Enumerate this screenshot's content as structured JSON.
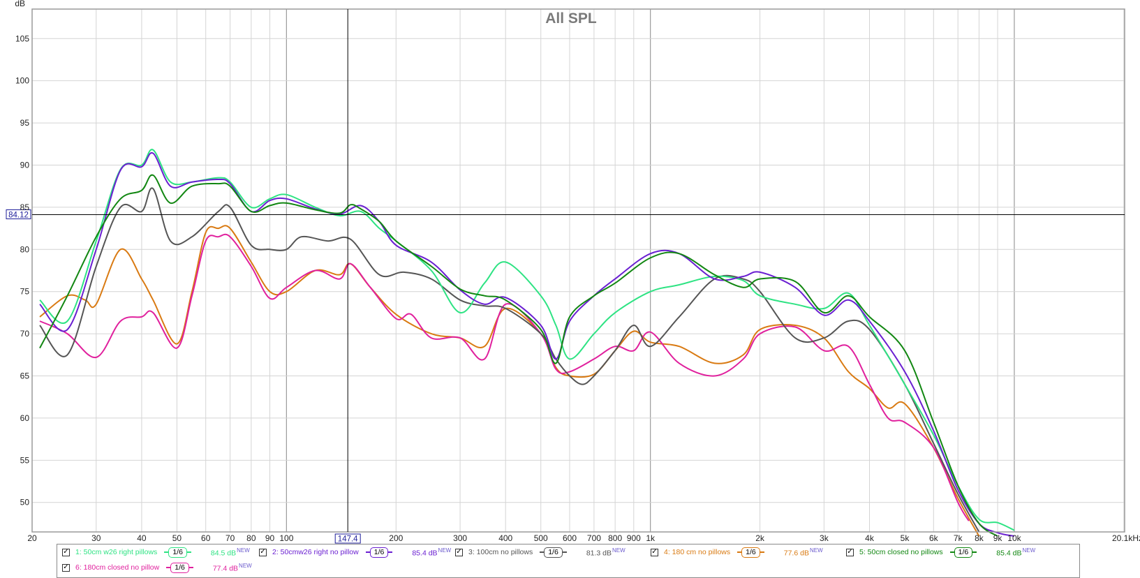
{
  "chart_data": {
    "type": "line",
    "title": "All SPL",
    "ylabel": "dB",
    "xscale": "log",
    "xlim": [
      20,
      20100
    ],
    "ylim": [
      46.5,
      108.5
    ],
    "grid": true,
    "y_ticks": [
      "50",
      "55",
      "60",
      "65",
      "70",
      "75",
      "80",
      "85",
      "90",
      "95",
      "100",
      "105"
    ],
    "x_ticks": [
      {
        "v": 20,
        "label": "20"
      },
      {
        "v": 30,
        "label": "30"
      },
      {
        "v": 40,
        "label": "40"
      },
      {
        "v": 50,
        "label": "50"
      },
      {
        "v": 60,
        "label": "60"
      },
      {
        "v": 70,
        "label": "70"
      },
      {
        "v": 80,
        "label": "80"
      },
      {
        "v": 90,
        "label": "90"
      },
      {
        "v": 100,
        "label": "100"
      },
      {
        "v": 200,
        "label": "200"
      },
      {
        "v": 300,
        "label": "300"
      },
      {
        "v": 400,
        "label": "400"
      },
      {
        "v": 500,
        "label": "500"
      },
      {
        "v": 600,
        "label": "600"
      },
      {
        "v": 700,
        "label": "700"
      },
      {
        "v": 800,
        "label": "800"
      },
      {
        "v": 900,
        "label": "900"
      },
      {
        "v": 1000,
        "label": "1k"
      },
      {
        "v": 2000,
        "label": "2k"
      },
      {
        "v": 3000,
        "label": "3k"
      },
      {
        "v": 4000,
        "label": "4k"
      },
      {
        "v": 5000,
        "label": "5k"
      },
      {
        "v": 6000,
        "label": "6k"
      },
      {
        "v": 7000,
        "label": "7k"
      },
      {
        "v": 8000,
        "label": "8k"
      },
      {
        "v": 9000,
        "label": "9k"
      },
      {
        "v": 10000,
        "label": "10k"
      },
      {
        "v": 20100,
        "label": "20.1kHz"
      }
    ],
    "cursor": {
      "x": 147.4,
      "y": 84.12,
      "x_label": "147.4",
      "y_label": "84.12"
    },
    "series": [
      {
        "name": "50cm w26 right pillows",
        "color": "#2ee383",
        "x": [
          21,
          25,
          30,
          35,
          40,
          43,
          48,
          55,
          65,
          70,
          80,
          90,
          100,
          120,
          140,
          160,
          180,
          200,
          250,
          300,
          350,
          400,
          500,
          550,
          600,
          700,
          800,
          1000,
          1200,
          1500,
          1800,
          2000,
          2500,
          3000,
          3500,
          4000,
          5000,
          6000,
          7000,
          8000,
          9000,
          10000
        ],
        "y": [
          74,
          71.5,
          81,
          89.5,
          90,
          91.8,
          88,
          88,
          88.5,
          88,
          85,
          86,
          86.5,
          85,
          84,
          84.5,
          82.5,
          81,
          77.5,
          72.5,
          76,
          78.5,
          74.5,
          71,
          67,
          70,
          72.5,
          75,
          75.8,
          76.8,
          76.3,
          74.5,
          73.5,
          73,
          74.8,
          71,
          64,
          58,
          52,
          48,
          47.6,
          46.7
        ]
      },
      {
        "name": "50cmw26 right no pillow",
        "color": "#6a1fd1",
        "x": [
          21,
          25,
          30,
          35,
          40,
          43,
          48,
          55,
          65,
          70,
          80,
          90,
          100,
          120,
          140,
          160,
          180,
          200,
          250,
          300,
          350,
          400,
          500,
          550,
          600,
          700,
          800,
          1000,
          1200,
          1500,
          1800,
          2000,
          2500,
          3000,
          3500,
          4000,
          5000,
          6000,
          7000,
          8000,
          9000,
          10000
        ],
        "y": [
          73.5,
          70.5,
          80,
          89.4,
          89.8,
          91.4,
          87.5,
          88,
          88.3,
          87.8,
          84.5,
          85.8,
          86,
          84.8,
          84.2,
          85.2,
          83.3,
          80.5,
          78.5,
          75.2,
          73.5,
          74.3,
          71,
          67,
          71.5,
          74.5,
          76.5,
          79.5,
          79.5,
          76.5,
          76.8,
          77.3,
          75.5,
          72.2,
          74,
          71.5,
          65.5,
          58.5,
          51.5,
          47.5,
          46.4,
          46
        ]
      },
      {
        "name": "100cm no pillows",
        "color": "#555555",
        "x": [
          21,
          25,
          30,
          35,
          40,
          43,
          48,
          55,
          65,
          70,
          80,
          90,
          100,
          110,
          130,
          150,
          180,
          210,
          250,
          300,
          350,
          400,
          500,
          550,
          600,
          650,
          700,
          800,
          900,
          1000,
          1200,
          1500,
          1800,
          2000,
          2500,
          3000,
          3500,
          4000,
          5000,
          6000,
          7000,
          8000
        ],
        "y": [
          71,
          67.5,
          78,
          85,
          84.5,
          87.2,
          81,
          81.5,
          84.5,
          85,
          80.5,
          80,
          80,
          81.5,
          81,
          81.2,
          77,
          77.3,
          76.5,
          74,
          73.3,
          73,
          70,
          67,
          65,
          64,
          65,
          68,
          71,
          68.5,
          72,
          76.5,
          76.5,
          75,
          69.5,
          69.5,
          71.5,
          70.5,
          64,
          57,
          51,
          46.5
        ]
      },
      {
        "name": "180 cm no pillows",
        "color": "#d97a12",
        "x": [
          21,
          25,
          28,
          30,
          35,
          40,
          43,
          50,
          55,
          60,
          65,
          70,
          80,
          90,
          100,
          120,
          140,
          150,
          170,
          200,
          250,
          300,
          350,
          400,
          500,
          550,
          600,
          700,
          800,
          900,
          1000,
          1200,
          1500,
          1800,
          2000,
          2500,
          3000,
          3500,
          4000,
          4500,
          5000,
          6000,
          7000,
          8000
        ],
        "y": [
          72,
          74.5,
          74,
          73.5,
          80,
          76.5,
          74,
          68.8,
          75,
          82,
          82.5,
          82.5,
          78.5,
          75,
          75,
          77.5,
          77,
          78.3,
          75.5,
          72.3,
          70,
          69.5,
          68.5,
          73,
          70,
          66,
          65,
          65.2,
          68,
          70.3,
          69,
          68.5,
          66.5,
          67.5,
          70.5,
          71,
          69.5,
          65.5,
          63.5,
          61.2,
          61.7,
          56.5,
          50.5,
          46
        ]
      },
      {
        "name": "50cm closed no pillows",
        "color": "#128712",
        "x": [
          21,
          25,
          30,
          35,
          40,
          43,
          48,
          55,
          65,
          70,
          80,
          90,
          100,
          120,
          140,
          150,
          160,
          180,
          200,
          250,
          300,
          350,
          400,
          500,
          550,
          600,
          700,
          800,
          1000,
          1200,
          1500,
          1800,
          2000,
          2500,
          3000,
          3500,
          4000,
          5000,
          6000,
          7000,
          8000,
          9000
        ],
        "y": [
          68.3,
          74.5,
          81.5,
          86,
          87,
          88.8,
          85.5,
          87.5,
          87.8,
          87.5,
          84.5,
          85.2,
          85.5,
          84.7,
          84.3,
          85.3,
          84.8,
          83.3,
          81,
          78,
          75.3,
          74.5,
          74,
          70.5,
          66.5,
          72,
          74.5,
          76,
          79,
          79.5,
          77,
          75.5,
          76.5,
          76.2,
          72.5,
          74.5,
          72,
          68,
          59.5,
          52,
          47.5,
          46
        ]
      },
      {
        "name": "180cm closed no pillow",
        "color": "#e0209d",
        "x": [
          21,
          25,
          30,
          35,
          40,
          43,
          50,
          55,
          60,
          65,
          70,
          80,
          90,
          100,
          120,
          140,
          150,
          170,
          200,
          220,
          250,
          300,
          350,
          400,
          500,
          550,
          600,
          700,
          800,
          900,
          1000,
          1200,
          1500,
          1800,
          2000,
          2500,
          3000,
          3500,
          4000,
          4500,
          5000,
          6000,
          7000,
          7500
        ],
        "y": [
          71.5,
          70,
          67.2,
          71.5,
          72,
          72.5,
          68.3,
          74.5,
          81,
          81.5,
          81.5,
          78,
          74.2,
          75.5,
          77.5,
          76.5,
          78.3,
          75.5,
          71.8,
          72.3,
          69.5,
          69.5,
          67,
          73.5,
          70,
          65.8,
          65.5,
          67,
          68.5,
          68,
          70.2,
          66.5,
          65,
          67,
          70,
          70.8,
          68,
          68.5,
          64,
          60,
          59.5,
          56.5,
          50,
          47.8
        ]
      }
    ]
  },
  "legend": [
    {
      "text": "1: 50cm w26 right pillows",
      "smoothing": "1/6",
      "level": "84.5 dB",
      "badge": "NEW",
      "color": "#2ee383"
    },
    {
      "text": "2: 50cmw26 right no pillow",
      "smoothing": "1/6",
      "level": "85.4 dB",
      "badge": "NEW",
      "color": "#6a1fd1"
    },
    {
      "text": "3: 100cm no pillows",
      "smoothing": "1/6",
      "level": "81.3 dB",
      "badge": "NEW",
      "color": "#555555"
    },
    {
      "text": "4: 180 cm no pillows",
      "smoothing": "1/6",
      "level": "77.6 dB",
      "badge": "NEW",
      "color": "#d97a12"
    },
    {
      "text": "5: 50cm closed no pillows",
      "smoothing": "1/6",
      "level": "85.4 dB",
      "badge": "NEW",
      "color": "#128712"
    },
    {
      "text": "6: 180cm closed no pillow",
      "smoothing": "1/6",
      "level": "77.4 dB",
      "badge": "NEW",
      "color": "#e0209d"
    }
  ],
  "checkmark": "✓"
}
